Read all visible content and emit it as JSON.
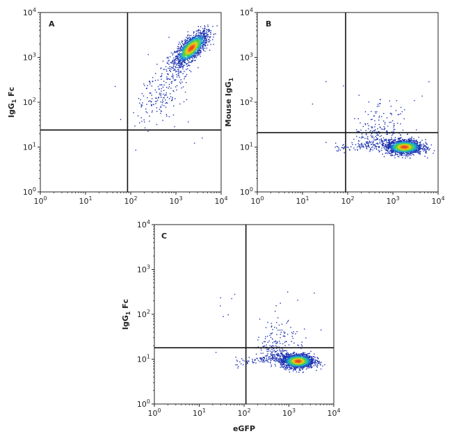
{
  "chart_data": [
    {
      "type": "scatter",
      "panel_label": "A",
      "xscale": "log",
      "yscale": "log",
      "xlim": [
        1,
        10000
      ],
      "ylim": [
        1,
        10000
      ],
      "xlabel": "",
      "ylabel": {
        "main": "IgG",
        "sub": "1",
        "suffix": " Fc"
      },
      "x_ticks": [
        {
          "base": "10",
          "exp": "0"
        },
        {
          "base": "10",
          "exp": "1"
        },
        {
          "base": "10",
          "exp": "2"
        },
        {
          "base": "10",
          "exp": "3"
        },
        {
          "base": "10",
          "exp": "4"
        }
      ],
      "y_ticks": [
        {
          "base": "10",
          "exp": "0"
        },
        {
          "base": "10",
          "exp": "1"
        },
        {
          "base": "10",
          "exp": "2"
        },
        {
          "base": "10",
          "exp": "3"
        },
        {
          "base": "10",
          "exp": "4"
        }
      ],
      "quadrant_gate": {
        "x": 85,
        "y": 24
      },
      "population": {
        "center_x": 2200,
        "center_y": 1600,
        "spread_x_decades": 0.18,
        "spread_y_decades": 0.18,
        "correlation": 0.7,
        "tail_to": [
          250,
          60
        ]
      }
    },
    {
      "type": "scatter",
      "panel_label": "B",
      "xscale": "log",
      "yscale": "log",
      "xlim": [
        1,
        10000
      ],
      "ylim": [
        1,
        10000
      ],
      "xlabel": "",
      "ylabel": {
        "main": "Mouse IgG",
        "sub": "1",
        "suffix": ""
      },
      "x_ticks": [
        {
          "base": "10",
          "exp": "0"
        },
        {
          "base": "10",
          "exp": "1"
        },
        {
          "base": "10",
          "exp": "2"
        },
        {
          "base": "10",
          "exp": "3"
        },
        {
          "base": "10",
          "exp": "4"
        }
      ],
      "y_ticks": [
        {
          "base": "10",
          "exp": "0"
        },
        {
          "base": "10",
          "exp": "1"
        },
        {
          "base": "10",
          "exp": "2"
        },
        {
          "base": "10",
          "exp": "3"
        },
        {
          "base": "10",
          "exp": "4"
        }
      ],
      "quadrant_gate": {
        "x": 90,
        "y": 21
      },
      "population": {
        "center_x": 1800,
        "center_y": 10,
        "spread_x_decades": 0.2,
        "spread_y_decades": 0.08,
        "correlation": 0.0,
        "tail_to": [
          200,
          150
        ]
      }
    },
    {
      "type": "scatter",
      "panel_label": "C",
      "xscale": "log",
      "yscale": "log",
      "xlim": [
        1,
        10000
      ],
      "ylim": [
        1,
        10000
      ],
      "xlabel": "eGFP",
      "ylabel": {
        "main": "IgG",
        "sub": "1",
        "suffix": " Fc"
      },
      "x_ticks": [
        {
          "base": "10",
          "exp": "0"
        },
        {
          "base": "10",
          "exp": "1"
        },
        {
          "base": "10",
          "exp": "2"
        },
        {
          "base": "10",
          "exp": "3"
        },
        {
          "base": "10",
          "exp": "4"
        }
      ],
      "y_ticks": [
        {
          "base": "10",
          "exp": "0"
        },
        {
          "base": "10",
          "exp": "1"
        },
        {
          "base": "10",
          "exp": "2"
        },
        {
          "base": "10",
          "exp": "3"
        },
        {
          "base": "10",
          "exp": "4"
        }
      ],
      "quadrant_gate": {
        "x": 110,
        "y": 18
      },
      "population": {
        "center_x": 1600,
        "center_y": 9,
        "spread_x_decades": 0.18,
        "spread_y_decades": 0.08,
        "correlation": 0.0,
        "tail_to": [
          250,
          150
        ]
      }
    }
  ],
  "colors": {
    "low": "#1a2fb0",
    "mid": "#18b4d8",
    "high": "#5fd12a",
    "peak1": "#f0d21c",
    "peak2": "#e8451a",
    "axis": "#222222"
  }
}
